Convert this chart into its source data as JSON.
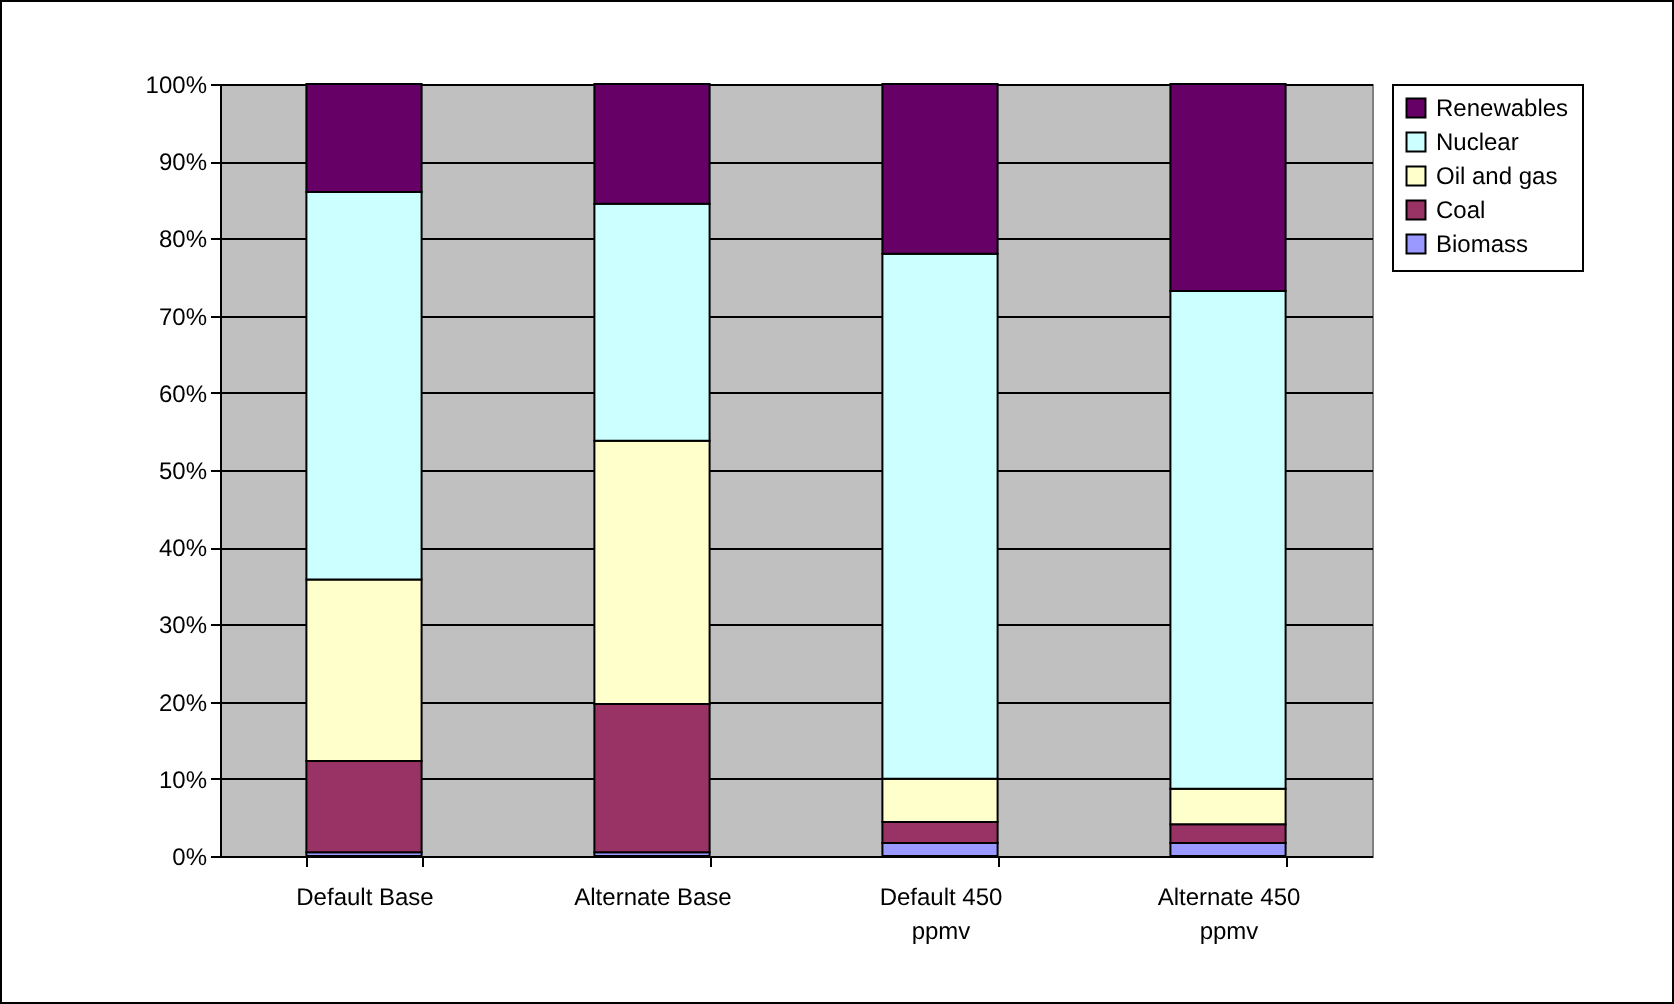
{
  "chart_data": {
    "type": "bar",
    "stacked": true,
    "categories": [
      "Default Base",
      "Alternate Base",
      "Default 450 ppmv",
      "Alternate 450 ppmv"
    ],
    "series": [
      {
        "name": "Biomass",
        "color": "#9999ff",
        "values": [
          0.5,
          0.5,
          1.7,
          1.7
        ]
      },
      {
        "name": "Coal",
        "color": "#993366",
        "values": [
          11.8,
          19.2,
          2.7,
          2.4
        ]
      },
      {
        "name": "Oil and gas",
        "color": "#ffffcc",
        "values": [
          23.5,
          34.1,
          5.6,
          4.6
        ]
      },
      {
        "name": "Nuclear",
        "color": "#ccffff",
        "values": [
          50.2,
          30.7,
          68,
          64.5
        ]
      },
      {
        "name": "Renewables",
        "color": "#660066",
        "values": [
          14,
          15.5,
          22,
          26.8
        ]
      }
    ],
    "ylim": [
      0,
      100
    ],
    "yticks": [
      {
        "value": 0,
        "label": "0%"
      },
      {
        "value": 10,
        "label": "10%"
      },
      {
        "value": 20,
        "label": "20%"
      },
      {
        "value": 30,
        "label": "30%"
      },
      {
        "value": 40,
        "label": "40%"
      },
      {
        "value": 50,
        "label": "50%"
      },
      {
        "value": 60,
        "label": "60%"
      },
      {
        "value": 70,
        "label": "70%"
      },
      {
        "value": 80,
        "label": "80%"
      },
      {
        "value": 90,
        "label": "90%"
      },
      {
        "value": 100,
        "label": "100%"
      }
    ],
    "grid": "y",
    "legend": "right"
  }
}
